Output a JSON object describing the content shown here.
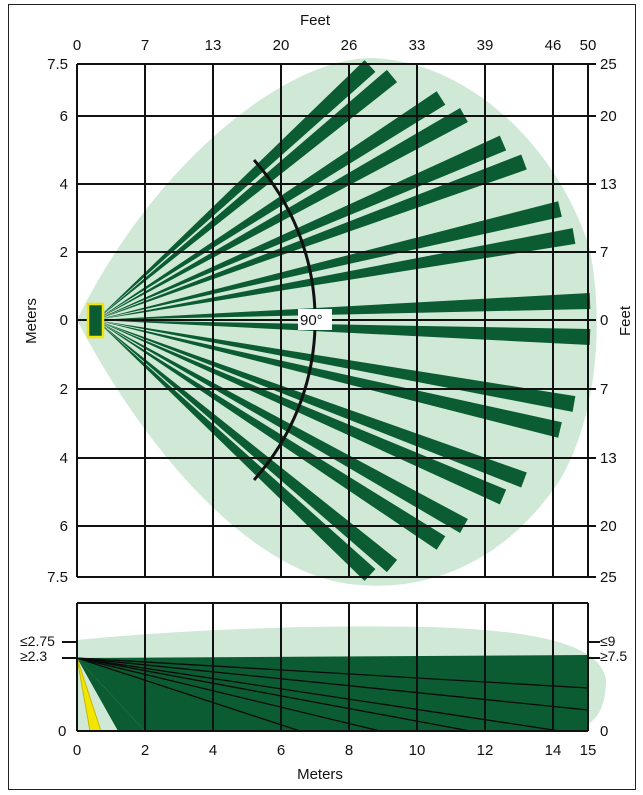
{
  "top_view": {
    "axis_title_top": "Feet",
    "axis_title_left": "Meters",
    "axis_title_right": "Feet",
    "top_ticks": [
      "0",
      "7",
      "13",
      "20",
      "26",
      "33",
      "39",
      "46",
      "50"
    ],
    "left_ticks": [
      "7.5",
      "6",
      "4",
      "2",
      "0",
      "2",
      "4",
      "6",
      "7.5"
    ],
    "right_ticks": [
      "25",
      "20",
      "13",
      "7",
      "0",
      "7",
      "13",
      "20",
      "25"
    ],
    "angle_label": "90°"
  },
  "side_view": {
    "bottom_ticks": [
      "0",
      "2",
      "4",
      "6",
      "8",
      "10",
      "12",
      "14",
      "15"
    ],
    "axis_title_bottom": "Meters",
    "left_labels": [
      "≤2.75",
      "≥2.3",
      "0"
    ],
    "right_labels": [
      "≤9",
      "≥7.5",
      "0"
    ]
  },
  "colors": {
    "zone_light": "#cfe9d6",
    "zone_dark": "#0b5c32",
    "sensor": "#f2e600",
    "grid": "#111111"
  }
}
